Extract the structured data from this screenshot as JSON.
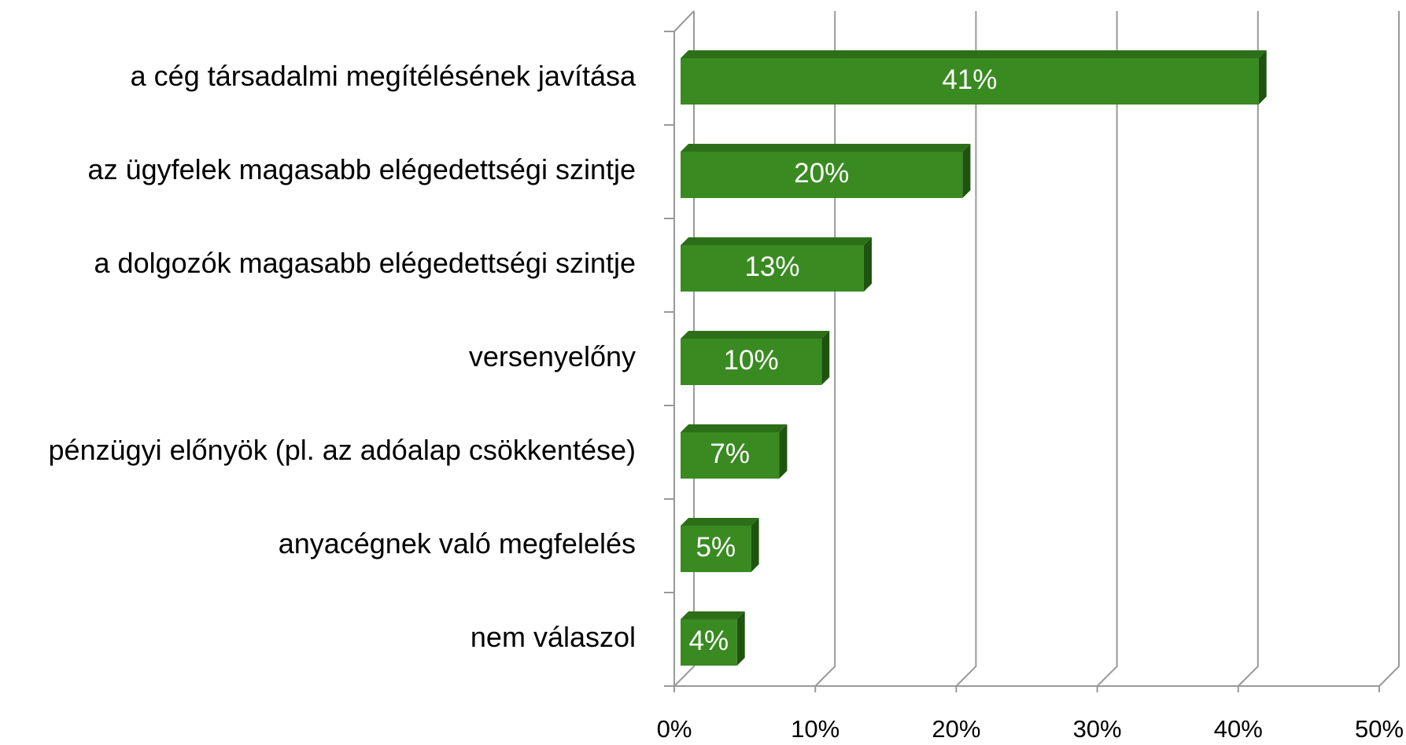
{
  "chart_data": {
    "type": "bar3d_horizontal",
    "categories": [
      "a cég társadalmi megítélésének javítása",
      "az ügyfelek magasabb elégedettségi szintje",
      "a dolgozók magasabb elégedettségi szintje",
      "versenyelőny",
      "pénzügyi előnyök (pl. az adóalap csökkentése)",
      "anyacégnek való megfelelés",
      "nem válaszol"
    ],
    "values": [
      41,
      20,
      13,
      10,
      7,
      5,
      4
    ],
    "value_labels": [
      "41%",
      "20%",
      "13%",
      "10%",
      "7%",
      "5%",
      "4%"
    ],
    "color": "#3a8a22",
    "xlim": [
      0,
      50
    ],
    "xticks": [
      {
        "value": 0,
        "label": "0%"
      },
      {
        "value": 10,
        "label": "10%"
      },
      {
        "value": 20,
        "label": "20%"
      },
      {
        "value": 30,
        "label": "30%"
      },
      {
        "value": 40,
        "label": "40%"
      },
      {
        "value": 50,
        "label": "50%"
      }
    ],
    "grid": true
  }
}
